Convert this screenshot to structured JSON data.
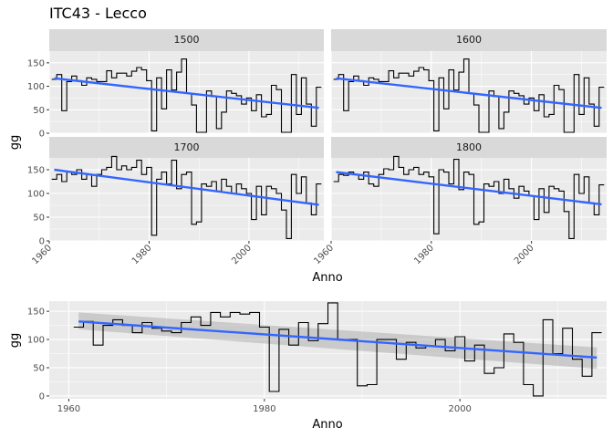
{
  "chart_data": {
    "type": "line",
    "title": "ITC43 - Lecco",
    "panels_chart": {
      "xlabel": "Anno",
      "ylabel": "gg",
      "xlim": [
        1960,
        2015
      ],
      "ylim": [
        0,
        175
      ],
      "x_ticks": [
        1960,
        1980,
        2000
      ],
      "y_ticks": [
        0,
        50,
        100,
        150
      ],
      "facets": [
        {
          "label": "1500",
          "x": [
            1961,
            1962,
            1963,
            1964,
            1965,
            1966,
            1967,
            1968,
            1969,
            1970,
            1971,
            1972,
            1973,
            1974,
            1975,
            1976,
            1977,
            1978,
            1979,
            1980,
            1981,
            1982,
            1983,
            1984,
            1985,
            1986,
            1987,
            1988,
            1989,
            1990,
            1991,
            1992,
            1993,
            1994,
            1995,
            1996,
            1997,
            1998,
            1999,
            2000,
            2001,
            2002,
            2003,
            2004,
            2005,
            2006,
            2007,
            2008,
            2009,
            2010,
            2011,
            2012,
            2013,
            2014
          ],
          "values": [
            115,
            125,
            48,
            110,
            122,
            112,
            102,
            118,
            115,
            110,
            110,
            133,
            118,
            128,
            128,
            122,
            132,
            140,
            135,
            112,
            5,
            118,
            52,
            135,
            92,
            130,
            158,
            85,
            60,
            2,
            2,
            90,
            78,
            10,
            45,
            90,
            85,
            80,
            62,
            75,
            48,
            82,
            35,
            40,
            102,
            93,
            2,
            2,
            125,
            40,
            118,
            62,
            15,
            98
          ],
          "trend": [
            117,
            54
          ]
        },
        {
          "label": "1600",
          "x": [
            1961,
            1962,
            1963,
            1964,
            1965,
            1966,
            1967,
            1968,
            1969,
            1970,
            1971,
            1972,
            1973,
            1974,
            1975,
            1976,
            1977,
            1978,
            1979,
            1980,
            1981,
            1982,
            1983,
            1984,
            1985,
            1986,
            1987,
            1988,
            1989,
            1990,
            1991,
            1992,
            1993,
            1994,
            1995,
            1996,
            1997,
            1998,
            1999,
            2000,
            2001,
            2002,
            2003,
            2004,
            2005,
            2006,
            2007,
            2008,
            2009,
            2010,
            2011,
            2012,
            2013,
            2014
          ],
          "values": [
            115,
            125,
            48,
            110,
            122,
            112,
            102,
            118,
            115,
            110,
            110,
            133,
            118,
            128,
            128,
            122,
            132,
            140,
            135,
            112,
            5,
            118,
            52,
            135,
            92,
            130,
            158,
            85,
            60,
            2,
            2,
            90,
            78,
            10,
            45,
            90,
            85,
            80,
            62,
            75,
            48,
            82,
            35,
            40,
            102,
            93,
            2,
            2,
            125,
            40,
            118,
            62,
            15,
            98
          ],
          "trend": [
            117,
            54
          ]
        },
        {
          "label": "1700",
          "x": [
            1961,
            1962,
            1963,
            1964,
            1965,
            1966,
            1967,
            1968,
            1969,
            1970,
            1971,
            1972,
            1973,
            1974,
            1975,
            1976,
            1977,
            1978,
            1979,
            1980,
            1981,
            1982,
            1983,
            1984,
            1985,
            1986,
            1987,
            1988,
            1989,
            1990,
            1991,
            1992,
            1993,
            1994,
            1995,
            1996,
            1997,
            1998,
            1999,
            2000,
            2001,
            2002,
            2003,
            2004,
            2005,
            2006,
            2007,
            2008,
            2009,
            2010,
            2011,
            2012,
            2013,
            2014
          ],
          "values": [
            130,
            140,
            125,
            145,
            140,
            150,
            130,
            140,
            115,
            140,
            150,
            155,
            178,
            150,
            158,
            150,
            155,
            170,
            140,
            155,
            12,
            130,
            145,
            120,
            170,
            110,
            140,
            145,
            35,
            40,
            120,
            115,
            125,
            105,
            130,
            115,
            100,
            120,
            110,
            100,
            45,
            115,
            55,
            115,
            110,
            100,
            65,
            5,
            140,
            100,
            135,
            80,
            55,
            120
          ],
          "trend": [
            150,
            76
          ]
        },
        {
          "label": "1800",
          "x": [
            1961,
            1962,
            1963,
            1964,
            1965,
            1966,
            1967,
            1968,
            1969,
            1970,
            1971,
            1972,
            1973,
            1974,
            1975,
            1976,
            1977,
            1978,
            1979,
            1980,
            1981,
            1982,
            1983,
            1984,
            1985,
            1986,
            1987,
            1988,
            1989,
            1990,
            1991,
            1992,
            1993,
            1994,
            1995,
            1996,
            1997,
            1998,
            1999,
            2000,
            2001,
            2002,
            2003,
            2004,
            2005,
            2006,
            2007,
            2008,
            2009,
            2010,
            2011,
            2012,
            2013,
            2014
          ],
          "values": [
            125,
            140,
            138,
            145,
            140,
            130,
            145,
            120,
            115,
            140,
            152,
            150,
            178,
            155,
            140,
            150,
            155,
            140,
            145,
            135,
            15,
            150,
            145,
            120,
            172,
            108,
            145,
            140,
            35,
            40,
            120,
            115,
            125,
            100,
            130,
            110,
            90,
            115,
            105,
            95,
            45,
            110,
            60,
            115,
            110,
            105,
            62,
            5,
            140,
            100,
            135,
            80,
            55,
            118
          ],
          "trend": [
            145,
            77
          ]
        }
      ]
    },
    "combined_chart": {
      "xlabel": "Anno",
      "ylabel": "gg",
      "xlim": [
        1958,
        2015
      ],
      "ylim": [
        -5,
        168
      ],
      "x_ticks": [
        1960,
        1980,
        2000
      ],
      "y_ticks": [
        0,
        50,
        100,
        150
      ],
      "x": [
        1961,
        1962,
        1963,
        1964,
        1965,
        1966,
        1967,
        1968,
        1969,
        1970,
        1971,
        1972,
        1973,
        1974,
        1975,
        1976,
        1977,
        1978,
        1979,
        1980,
        1981,
        1982,
        1983,
        1984,
        1985,
        1986,
        1987,
        1988,
        1989,
        1990,
        1991,
        1992,
        1993,
        1994,
        1995,
        1996,
        1997,
        1998,
        1999,
        2000,
        2001,
        2002,
        2003,
        2004,
        2005,
        2006,
        2007,
        2008,
        2009,
        2010,
        2011,
        2012,
        2013,
        2014
      ],
      "values": [
        122,
        132,
        90,
        125,
        135,
        125,
        112,
        130,
        120,
        115,
        112,
        130,
        140,
        125,
        148,
        140,
        148,
        145,
        148,
        122,
        8,
        118,
        90,
        130,
        98,
        128,
        165,
        100,
        100,
        18,
        20,
        100,
        100,
        65,
        95,
        85,
        88,
        100,
        80,
        105,
        62,
        90,
        40,
        50,
        110,
        95,
        20,
        0,
        135,
        75,
        120,
        65,
        35,
        112
      ],
      "trend": [
        132,
        68
      ],
      "ci_lower": [
        118,
        48
      ],
      "ci_upper": [
        148,
        86
      ]
    }
  }
}
